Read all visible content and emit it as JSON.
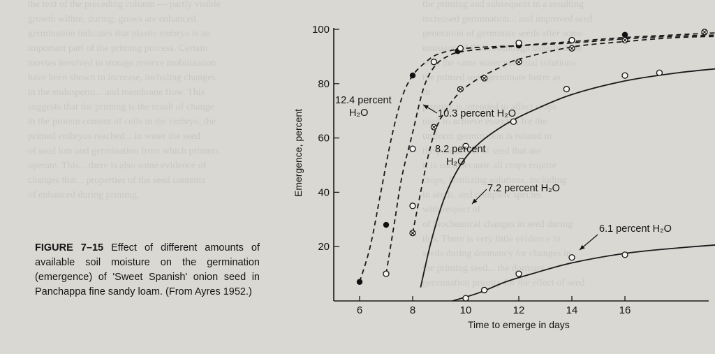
{
  "caption": {
    "label": "FIGURE 7–15",
    "text": "Effect of different amounts of available soil moisture on the germination (emergence) of 'Sweet Spanish' onion seed in Panchappa fine sandy loam. (From Ayres 1952.)"
  },
  "chart_data": {
    "type": "line",
    "xlabel": "Time to emerge in days",
    "ylabel": "Emergence, percent",
    "xlim": [
      5,
      21.2
    ],
    "ylim": [
      0,
      100
    ],
    "xticks": [
      6,
      8,
      10,
      12,
      14,
      16
    ],
    "yticks": [
      20,
      40,
      60,
      80,
      100
    ],
    "series": [
      {
        "name": "12.4 percent H2O",
        "label_lines": [
          "12.4 percent",
          "H₂O"
        ],
        "marker": "filled",
        "dashed": true,
        "points": [
          [
            6,
            7
          ],
          [
            7,
            28
          ],
          [
            8,
            83
          ],
          [
            9.7,
            92
          ],
          [
            12,
            94
          ],
          [
            14,
            96
          ],
          [
            16,
            98
          ]
        ],
        "curve": [
          [
            6,
            7
          ],
          [
            6.4,
            20
          ],
          [
            6.8,
            40
          ],
          [
            7.2,
            60
          ],
          [
            7.6,
            75
          ],
          [
            8,
            83
          ],
          [
            8.5,
            88
          ],
          [
            9,
            91
          ],
          [
            10,
            93
          ],
          [
            12,
            94
          ],
          [
            14,
            95
          ],
          [
            16,
            96.5
          ],
          [
            18,
            97.5
          ],
          [
            20,
            98
          ]
        ]
      },
      {
        "name": "10.3 percent H2O",
        "label_lines": [
          "10.3 percent H₂O"
        ],
        "marker": "open",
        "dashed": true,
        "points": [
          [
            7,
            10
          ],
          [
            8,
            56
          ],
          [
            8.8,
            88
          ],
          [
            9.8,
            93
          ],
          [
            12,
            95
          ],
          [
            14,
            96
          ],
          [
            19,
            99
          ],
          [
            20.2,
            100
          ]
        ],
        "curve": [
          [
            7,
            10
          ],
          [
            7.3,
            28
          ],
          [
            7.6,
            46
          ],
          [
            8,
            62
          ],
          [
            8.4,
            78
          ],
          [
            8.8,
            86
          ],
          [
            9.3,
            90
          ],
          [
            10,
            92
          ],
          [
            12,
            94
          ],
          [
            14,
            95.5
          ],
          [
            16,
            97
          ],
          [
            18,
            98
          ],
          [
            20,
            99
          ]
        ]
      },
      {
        "name": "8.2 percent H2O",
        "label_lines": [
          "8.2 percent",
          "H₂O"
        ],
        "marker": "crossed",
        "dashed": true,
        "points": [
          [
            8,
            25
          ],
          [
            8.8,
            64
          ],
          [
            9.8,
            78
          ],
          [
            10.7,
            82
          ],
          [
            12,
            88
          ],
          [
            14,
            93
          ],
          [
            16,
            96
          ],
          [
            19,
            99
          ]
        ],
        "curve": [
          [
            8,
            25
          ],
          [
            8.3,
            40
          ],
          [
            8.6,
            54
          ],
          [
            8.9,
            64
          ],
          [
            9.3,
            71
          ],
          [
            9.8,
            77
          ],
          [
            10.5,
            82
          ],
          [
            11.3,
            86
          ],
          [
            12,
            89
          ],
          [
            14,
            93.5
          ],
          [
            16,
            95.5
          ],
          [
            18,
            97
          ],
          [
            20,
            97.5
          ]
        ]
      },
      {
        "name": "7.2 percent H2O",
        "label_lines": [
          "7.2 percent H₂O"
        ],
        "marker": "open",
        "dashed": false,
        "points": [
          [
            8,
            35
          ],
          [
            10,
            57
          ],
          [
            11.8,
            66
          ],
          [
            13.8,
            78
          ],
          [
            16,
            83
          ],
          [
            17.3,
            84
          ],
          [
            20.5,
            86
          ]
        ],
        "curve": [
          [
            8.3,
            5
          ],
          [
            8.7,
            22
          ],
          [
            9.2,
            38
          ],
          [
            9.8,
            50
          ],
          [
            10.5,
            58
          ],
          [
            11.5,
            65
          ],
          [
            12.5,
            70
          ],
          [
            14,
            76
          ],
          [
            16,
            81
          ],
          [
            18,
            84
          ],
          [
            20,
            86
          ],
          [
            21,
            87
          ]
        ]
      },
      {
        "name": "6.1 percent H2O",
        "label_lines": [
          "6.1 percent H₂O"
        ],
        "marker": "open",
        "dashed": false,
        "points": [
          [
            10,
            1
          ],
          [
            10.7,
            4
          ],
          [
            12,
            10
          ],
          [
            14,
            16
          ],
          [
            16,
            17
          ]
        ],
        "curve": [
          [
            9.5,
            0
          ],
          [
            10.5,
            3
          ],
          [
            11.5,
            7
          ],
          [
            12.5,
            10
          ],
          [
            14,
            14
          ],
          [
            16,
            17.5
          ],
          [
            18,
            19.5
          ],
          [
            20,
            21
          ],
          [
            21,
            21.5
          ]
        ]
      }
    ]
  },
  "bleed_text_left": [
    "the text of the preceding column — partly visible",
    "growth within, during, grows are enhanced",
    "germination indicates that plastic embryo is an",
    "important part of the priming process. Certain",
    "movies involved in storage reserve mobilization",
    "have been shown to increase, including changes",
    "in the endosperm... and membrane flow. This",
    "suggests that the priming is the result of change",
    "in the protein content of cells in the embryo, the",
    "primed embryos reached... in water the seed",
    "of seed lots and germination from which primers",
    "operate. This... there is also some evidence of",
    "changes that... properties of the seed contents",
    "of enhanced during priming."
  ],
  "bleed_text_right": [
    "the priming and subsequent in a resulting",
    "increased germination... and improved seed",
    "generation of germinate seeds after some",
    "emission of PEG. Although usually done",
    "with the same water potential solutions",
    "the primed seed germinate faster as",
    "in",
    "priming is intended to affect crops",
    "used to achieve essential for the",
    "uniform germination is related in",
    "the production of seed that are",
    "it is used because all crops require",
    "crops, fertilizing solutions, including",
    "in seeds, and complete species",
    "with respect of",
    "of biochemical changes in seed during",
    "this. There is very little evidence in",
    "seeds during dormancy for changes in",
    "the priming seed... the dormant",
    "germination priority for the effect of seed"
  ]
}
